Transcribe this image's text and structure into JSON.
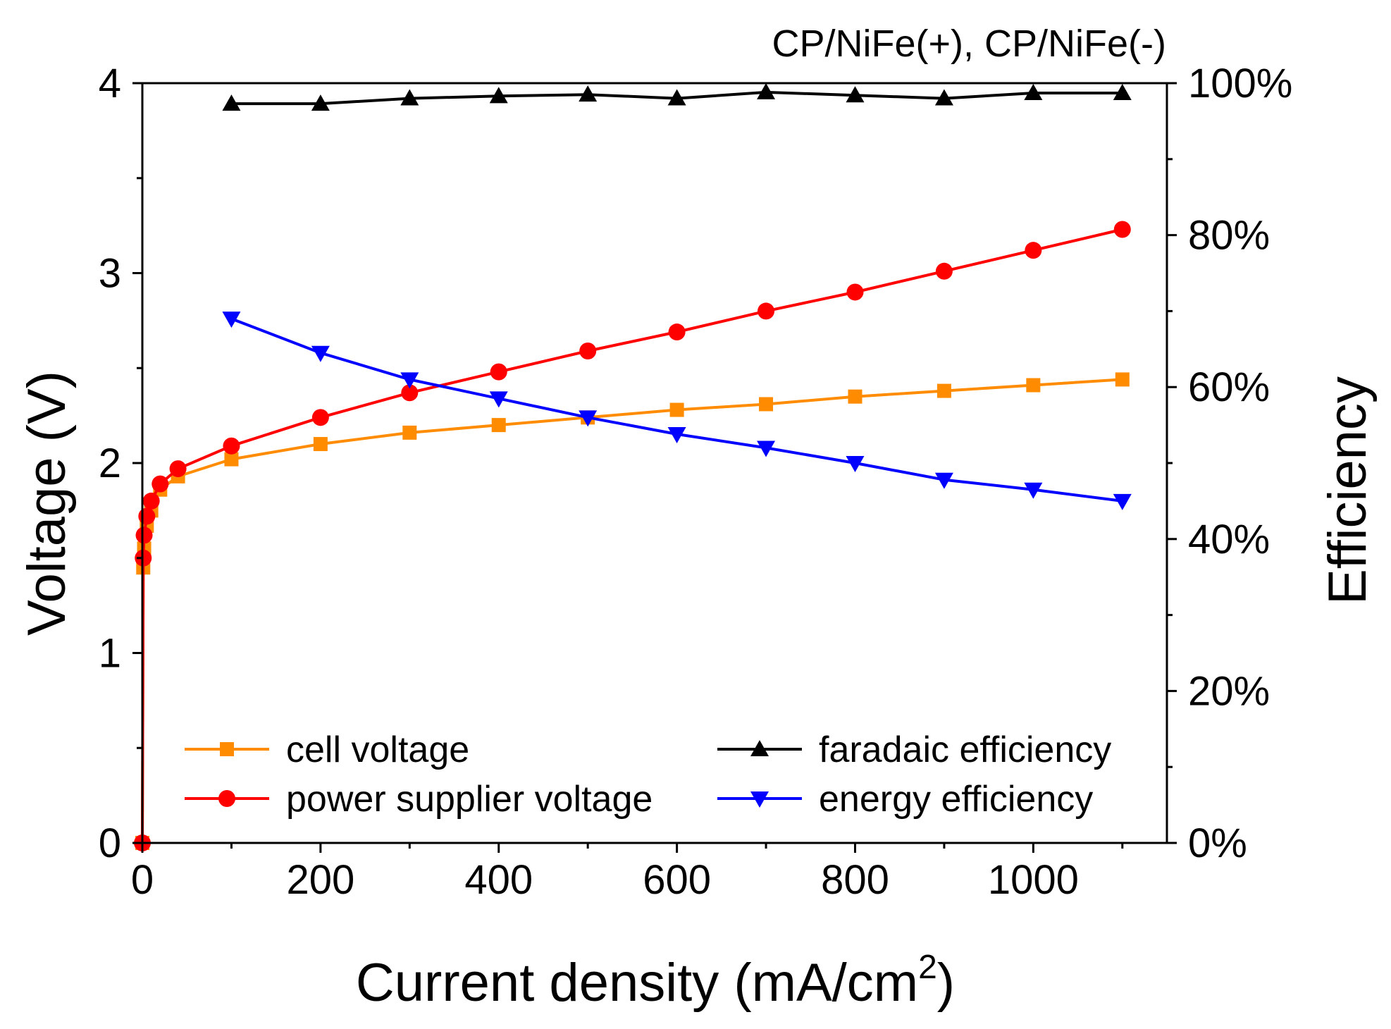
{
  "chart_data": {
    "type": "line",
    "title": "CP/NiFe(+), CP/NiFe(-)",
    "xlabel": "Current density (mA/cm",
    "xlabel_sup": "2",
    "xlabel_close": ")",
    "ylabel_left": "Voltage (V)",
    "ylabel_right": "Efficiency",
    "xlim": [
      0,
      1150
    ],
    "ylim_left": [
      0,
      4
    ],
    "ylim_right": [
      0,
      100
    ],
    "x_ticks": [
      0,
      200,
      400,
      600,
      800,
      1000
    ],
    "x_tick_labels": [
      "0",
      "200",
      "400",
      "600",
      "800",
      "1000"
    ],
    "y_left_ticks": [
      0,
      1,
      2,
      3,
      4
    ],
    "y_left_tick_labels": [
      "0",
      "1",
      "2",
      "3",
      "4"
    ],
    "y_right_ticks": [
      0,
      20,
      40,
      60,
      80,
      100
    ],
    "y_right_tick_labels": [
      "0%",
      "20%",
      "40%",
      "60%",
      "80%",
      "100%"
    ],
    "grid": false,
    "legend_placement": "bottom",
    "series": [
      {
        "name": "cell voltage",
        "axis": "left",
        "color": "#FF8C00",
        "marker": "square",
        "x": [
          0,
          1,
          2,
          5,
          10,
          20,
          40,
          100,
          200,
          300,
          400,
          500,
          600,
          700,
          800,
          900,
          1000,
          1100
        ],
        "values": [
          0.0,
          1.45,
          1.55,
          1.67,
          1.75,
          1.86,
          1.93,
          2.02,
          2.1,
          2.16,
          2.2,
          2.24,
          2.28,
          2.31,
          2.35,
          2.38,
          2.41,
          2.44
        ]
      },
      {
        "name": "power supplier voltage",
        "axis": "left",
        "color": "#FF0000",
        "marker": "circle",
        "x": [
          0,
          1,
          2,
          5,
          10,
          20,
          40,
          100,
          200,
          300,
          400,
          500,
          600,
          700,
          800,
          900,
          1000,
          1100
        ],
        "values": [
          0.0,
          1.5,
          1.62,
          1.72,
          1.8,
          1.89,
          1.97,
          2.09,
          2.24,
          2.37,
          2.48,
          2.59,
          2.69,
          2.8,
          2.9,
          3.01,
          3.12,
          3.23
        ]
      },
      {
        "name": "faradaic efficiency",
        "axis": "right",
        "color": "#000000",
        "marker": "triangle-up",
        "x": [
          100,
          200,
          300,
          400,
          500,
          600,
          700,
          800,
          900,
          1000,
          1100
        ],
        "values": [
          97.3,
          97.3,
          98.0,
          98.3,
          98.5,
          98.0,
          98.8,
          98.4,
          98.0,
          98.7,
          98.7
        ]
      },
      {
        "name": "energy efficiency",
        "axis": "right",
        "color": "#0000FF",
        "marker": "triangle-down",
        "x": [
          100,
          200,
          300,
          400,
          500,
          600,
          700,
          800,
          900,
          1000,
          1100
        ],
        "values": [
          69.0,
          64.5,
          61.0,
          58.5,
          56.0,
          53.8,
          52.0,
          50.0,
          47.8,
          46.5,
          45.0
        ]
      }
    ],
    "legend": [
      {
        "label": "cell voltage",
        "series": 0
      },
      {
        "label": "power supplier voltage",
        "series": 1
      },
      {
        "label": "faradaic efficiency",
        "series": 2
      },
      {
        "label": "energy efficiency",
        "series": 3
      }
    ]
  }
}
